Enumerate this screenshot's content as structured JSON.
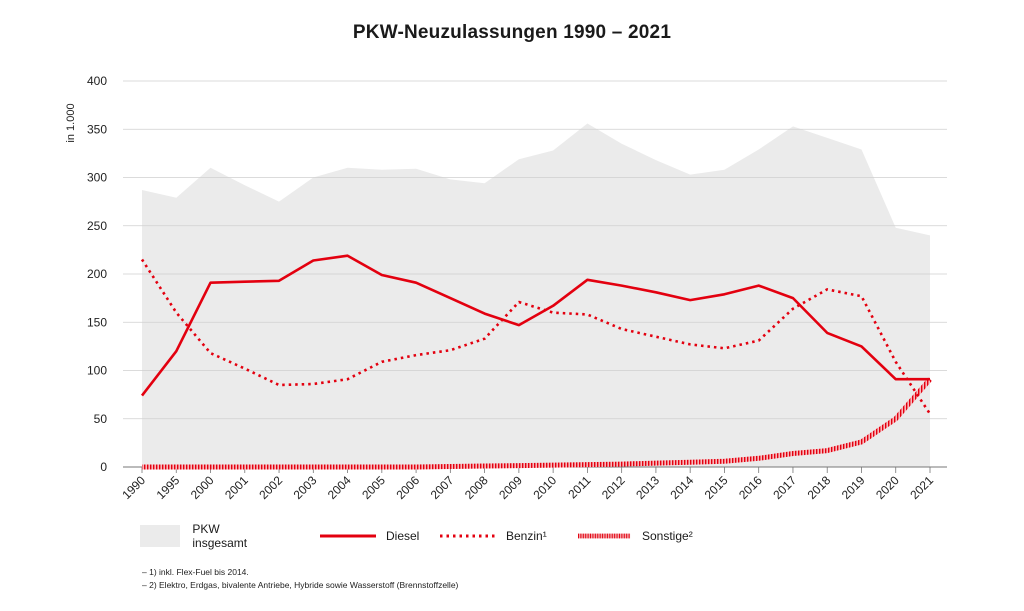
{
  "title": "PKW-Neuzulassungen 1990 – 2021",
  "chart_data": {
    "type": "line",
    "title": "PKW-Neuzulassungen 1990 – 2021",
    "ylabel": "in 1.000",
    "xlabel": "",
    "ylim": [
      0,
      400
    ],
    "yticks": [
      0,
      50,
      100,
      150,
      200,
      250,
      300,
      350,
      400
    ],
    "grid": true,
    "legend_position": "bottom",
    "categories": [
      "1990",
      "1995",
      "2000",
      "2001",
      "2002",
      "2003",
      "2004",
      "2005",
      "2006",
      "2007",
      "2008",
      "2009",
      "2010",
      "2011",
      "2012",
      "2013",
      "2014",
      "2015",
      "2016",
      "2017",
      "2018",
      "2019",
      "2020",
      "2021"
    ],
    "series": [
      {
        "name": "PKW insgesamt",
        "style": "area",
        "color": "#ebebeb",
        "values": [
          287,
          279,
          310,
          292,
          275,
          300,
          310,
          308,
          309,
          298,
          294,
          319,
          328,
          356,
          335,
          318,
          303,
          308,
          329,
          353,
          341,
          329,
          248,
          240
        ]
      },
      {
        "name": "Diesel",
        "style": "solid",
        "color": "#e3000f",
        "values": [
          74,
          120,
          191,
          192,
          193,
          214,
          219,
          199,
          191,
          175,
          159,
          147,
          167,
          194,
          188,
          181,
          173,
          179,
          188,
          175,
          139,
          125,
          91,
          91
        ]
      },
      {
        "name": "Benzin¹",
        "style": "dotted",
        "color": "#e3000f",
        "values": [
          215,
          160,
          118,
          102,
          85,
          86,
          91,
          109,
          116,
          121,
          133,
          171,
          160,
          158,
          143,
          135,
          127,
          123,
          131,
          164,
          184,
          177,
          109,
          55
        ]
      },
      {
        "name": "Sonstige²",
        "style": "hatched",
        "color": "#e3000f",
        "values": [
          0,
          0,
          0,
          0,
          0,
          0,
          0,
          0,
          0,
          0.5,
          1,
          1.5,
          2,
          2.5,
          3,
          4,
          5,
          6,
          9,
          14,
          17,
          26,
          50,
          91
        ]
      }
    ]
  },
  "legend": [
    {
      "label": "PKW insgesamt",
      "key": "area"
    },
    {
      "label": "Diesel",
      "key": "solid"
    },
    {
      "label": "Benzin¹",
      "key": "dotted"
    },
    {
      "label": "Sonstige²",
      "key": "hatched"
    }
  ],
  "footnotes": [
    "–   1) inkl. Flex-Fuel bis 2014.",
    "–   2) Elektro, Erdgas, bivalente Antriebe, Hybride sowie Wasserstoff (Brennstoffzelle)"
  ]
}
